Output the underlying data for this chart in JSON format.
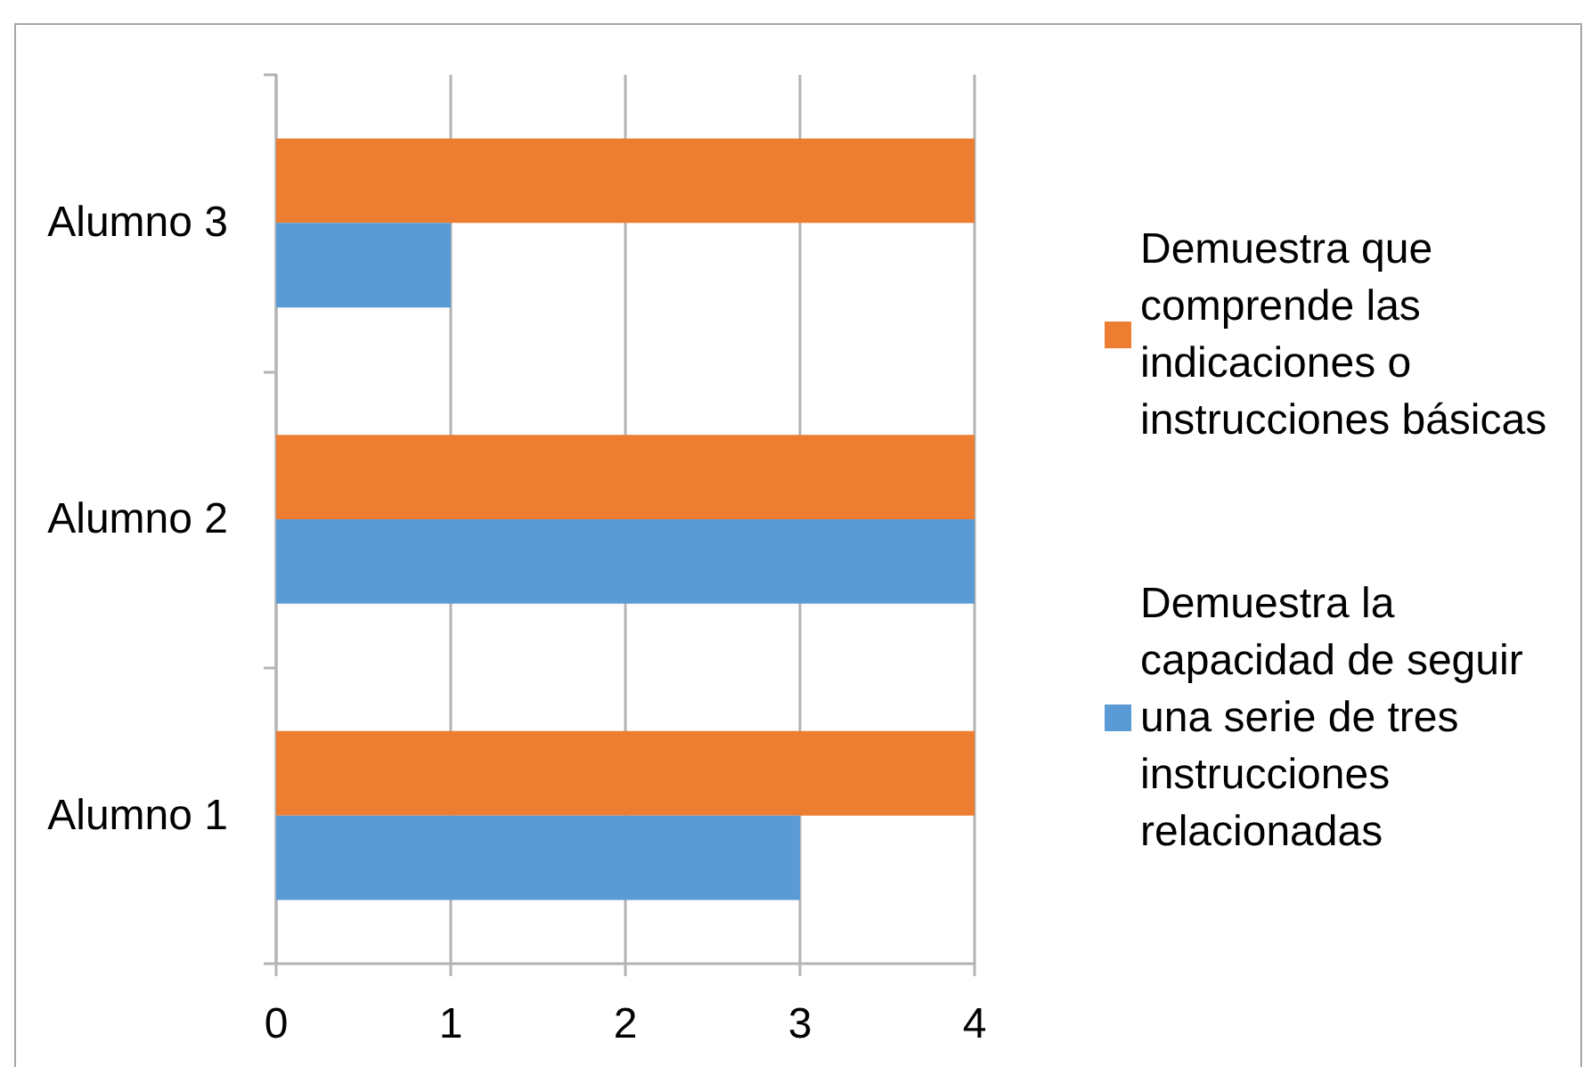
{
  "chart_data": {
    "type": "bar",
    "orientation": "horizontal",
    "categories": [
      "Alumno 3",
      "Alumno 2",
      "Alumno 1"
    ],
    "series": [
      {
        "name": "Demuestra que comprende las indicaciones o instrucciones básicas",
        "color": "#ed7d31",
        "values": [
          4,
          4,
          4
        ]
      },
      {
        "name": "Demuestra la capacidad de seguir una serie de tres instrucciones relacionadas",
        "color": "#5b9bd5",
        "values": [
          1,
          4,
          3
        ]
      }
    ],
    "xlim": [
      0,
      4
    ],
    "xticks": [
      0,
      1,
      2,
      3,
      4
    ],
    "grid": "x",
    "legend": "right"
  }
}
